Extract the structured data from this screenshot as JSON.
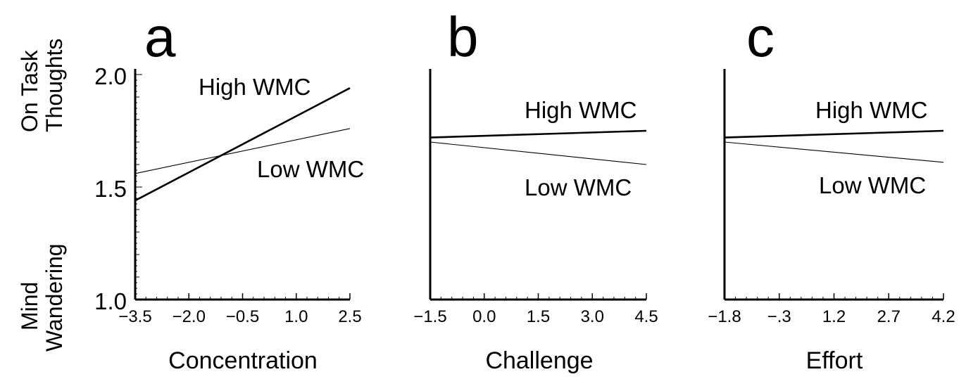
{
  "y_axis": {
    "top_title": [
      "On Task",
      "Thoughts"
    ],
    "bottom_title": [
      "Mind",
      "Wandering"
    ],
    "ticks": [
      "2.0",
      "1.5",
      "1.0"
    ]
  },
  "chart_data": [
    {
      "type": "line",
      "panel": "a",
      "xlabel": "Concentration",
      "x_ticks": [
        "−3.5",
        "−2.0",
        "−0.5",
        "1.0",
        "2.5"
      ],
      "x_tick_values": [
        -3.5,
        -2.0,
        -0.5,
        1.0,
        2.5
      ],
      "xlim": [
        -3.5,
        2.5
      ],
      "ylim": [
        1.0,
        2.0
      ],
      "series": [
        {
          "name": "High WMC",
          "x": [
            -3.5,
            2.5
          ],
          "y": [
            1.44,
            1.94
          ],
          "weight": "thick"
        },
        {
          "name": "Low WMC",
          "x": [
            -3.5,
            2.5
          ],
          "y": [
            1.56,
            1.76
          ],
          "weight": "thin"
        }
      ]
    },
    {
      "type": "line",
      "panel": "b",
      "xlabel": "Challenge",
      "x_ticks": [
        "−1.5",
        "0.0",
        "1.5",
        "3.0",
        "4.5"
      ],
      "x_tick_values": [
        -1.5,
        0.0,
        1.5,
        3.0,
        4.5
      ],
      "xlim": [
        -1.5,
        4.5
      ],
      "ylim": [
        1.0,
        2.0
      ],
      "series": [
        {
          "name": "High WMC",
          "x": [
            -1.5,
            4.5
          ],
          "y": [
            1.72,
            1.75
          ],
          "weight": "thick"
        },
        {
          "name": "Low WMC",
          "x": [
            -1.5,
            4.5
          ],
          "y": [
            1.7,
            1.6
          ],
          "weight": "thin"
        }
      ]
    },
    {
      "type": "line",
      "panel": "c",
      "xlabel": "Effort",
      "x_ticks": [
        "−1.8",
        "−.3",
        "1.2",
        "2.7",
        "4.2"
      ],
      "x_tick_values": [
        -1.8,
        -0.3,
        1.2,
        2.7,
        4.2
      ],
      "xlim": [
        -1.8,
        4.2
      ],
      "ylim": [
        1.0,
        2.0
      ],
      "series": [
        {
          "name": "High WMC",
          "x": [
            -1.8,
            4.2
          ],
          "y": [
            1.72,
            1.75
          ],
          "weight": "thick"
        },
        {
          "name": "Low WMC",
          "x": [
            -1.8,
            4.2
          ],
          "y": [
            1.7,
            1.61
          ],
          "weight": "thin"
        }
      ]
    }
  ]
}
